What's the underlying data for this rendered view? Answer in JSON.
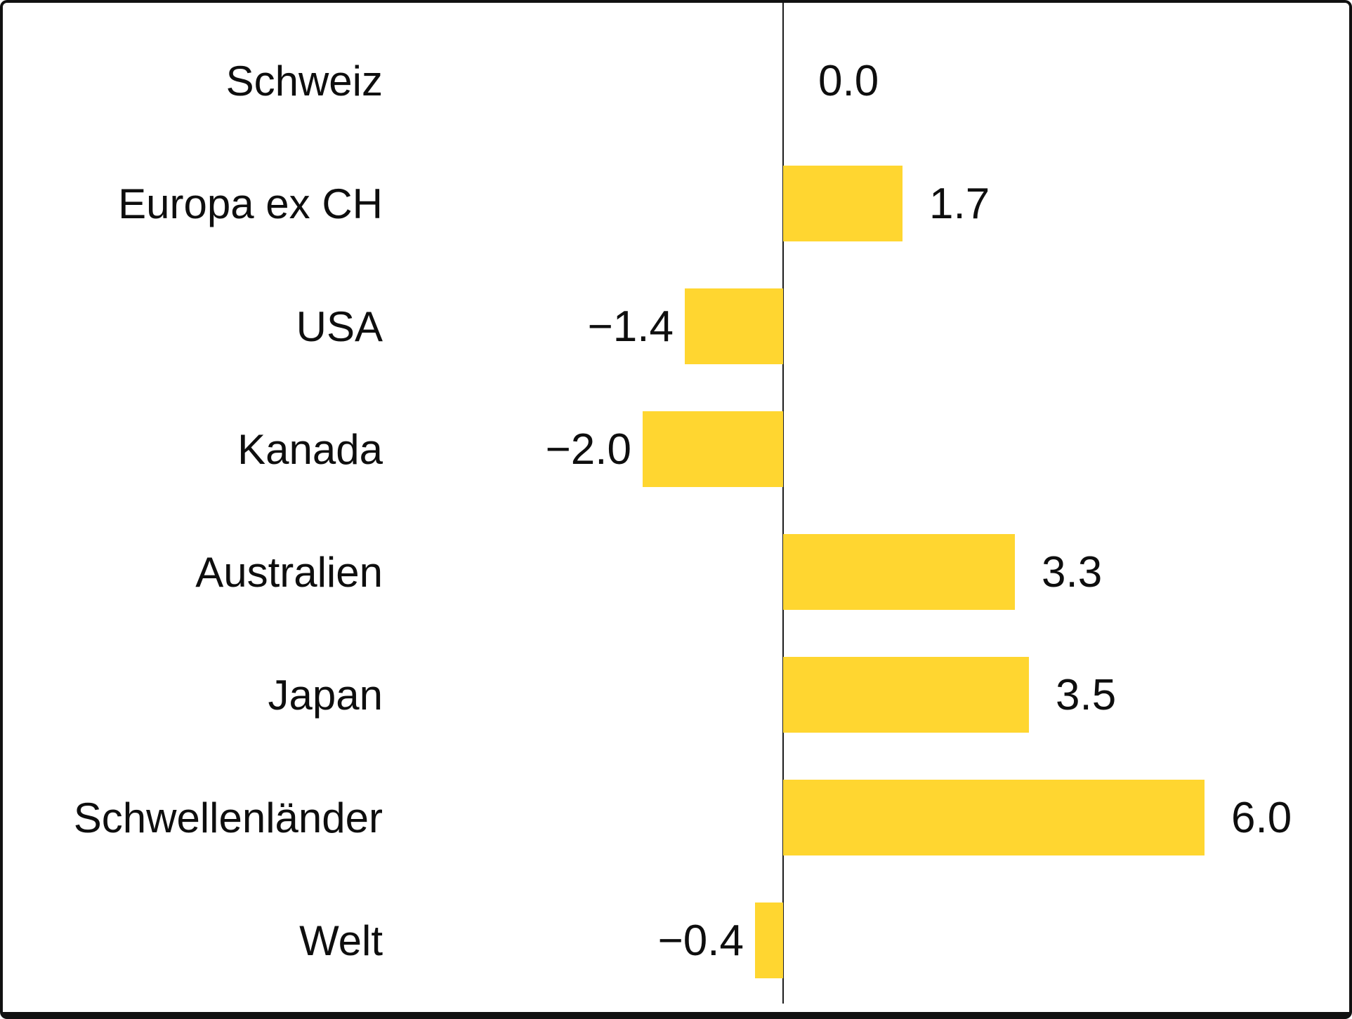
{
  "chart_data": {
    "type": "bar",
    "orientation": "horizontal",
    "title": "",
    "xlabel": "",
    "ylabel": "",
    "categories": [
      "Schweiz",
      "Europa ex CH",
      "USA",
      "Kanada",
      "Australien",
      "Japan",
      "Schwellenländer",
      "Welt"
    ],
    "values": [
      0.0,
      1.7,
      -1.4,
      -2.0,
      3.3,
      3.5,
      6.0,
      -0.4
    ],
    "value_labels": [
      "0.0",
      "1.7",
      "−1.4",
      "−2.0",
      "3.3",
      "3.5",
      "6.0",
      "−0.4"
    ],
    "xlim": [
      -2.0,
      6.0
    ],
    "grid": false,
    "legend": false,
    "zero_axis": true,
    "bar_color": "#FFD630",
    "axis_color": "#1c1c1c",
    "text_color": "#0e0e0e",
    "frame_border_color": "#111111",
    "background_color": "#ffffff"
  }
}
